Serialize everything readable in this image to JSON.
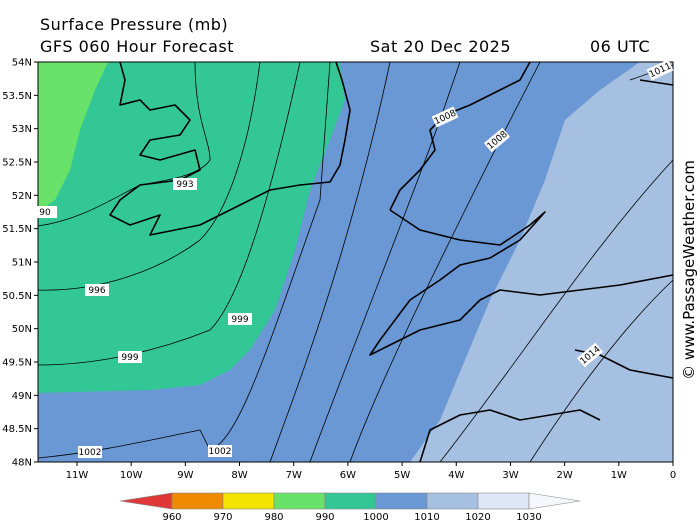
{
  "header": {
    "title": "Surface Pressure (mb)",
    "subtitle": "GFS 060 Hour Forecast",
    "date": "Sat 20 Dec 2025",
    "time": "06 UTC"
  },
  "map": {
    "lat_labels": [
      "54N",
      "53.5N",
      "53N",
      "52.5N",
      "52N",
      "51.5N",
      "51N",
      "50.5N",
      "50N",
      "49.5N",
      "49N",
      "48.5N",
      "48N"
    ],
    "lon_labels": [
      "11W",
      "10W",
      "9W",
      "8W",
      "7W",
      "6W",
      "5W",
      "4W",
      "3W",
      "2W",
      "1W",
      "0"
    ],
    "contour_labels": [
      "1008",
      "1008",
      "1011",
      "993",
      "90",
      "996",
      "999",
      "999",
      "1002",
      "1002",
      "1014"
    ]
  },
  "colorbar": {
    "labels": [
      "960",
      "970",
      "980",
      "990",
      "1000",
      "1010",
      "1020",
      "1030"
    ]
  },
  "watermark": "© www.PassageWeather.com"
}
